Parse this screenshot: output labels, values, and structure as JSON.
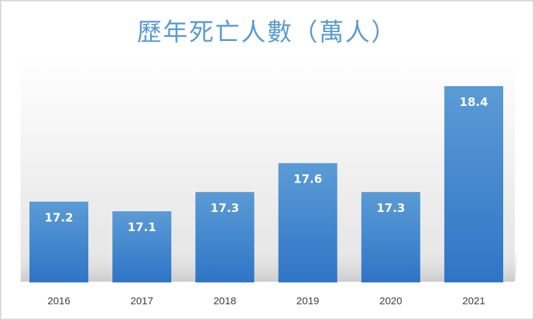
{
  "chart_data": {
    "type": "bar",
    "title": "歷年死亡人數（萬人）",
    "categories": [
      "2016",
      "2017",
      "2018",
      "2019",
      "2020",
      "2021"
    ],
    "values": [
      17.2,
      17.1,
      17.3,
      17.6,
      17.3,
      18.4
    ],
    "data_labels": [
      "17.2",
      "17.1",
      "17.3",
      "17.6",
      "17.3",
      "18.4"
    ],
    "xlabel": "",
    "ylabel": "",
    "grid": false,
    "legend": "none",
    "colors": {
      "bar_top": "#5b9bd5",
      "bar_bottom": "#2e75c6",
      "title": "#5b9bd5",
      "tick": "#404040"
    }
  }
}
